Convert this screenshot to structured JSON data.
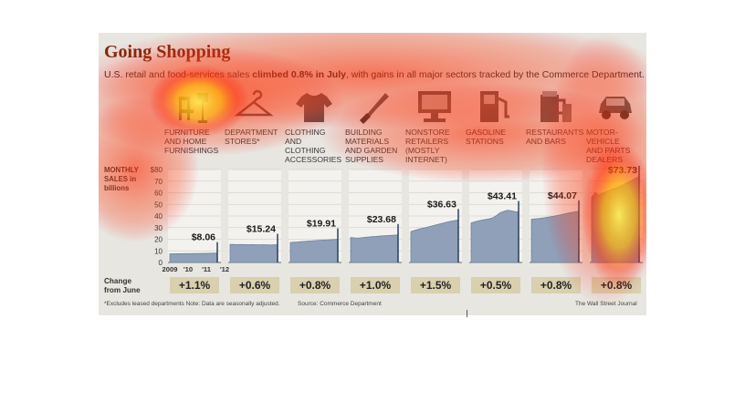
{
  "headline": "Going Shopping",
  "subtitle": {
    "pre": "U.S. retail and food-services sales ",
    "bold": "climbed 0.8% in July",
    "post": ", with gains in all major sectors tracked by the Commerce Department."
  },
  "y_axis_label": "MONTHLY\nSALES in\nbillions",
  "change_label": "Change\nfrom June",
  "footer": {
    "note": "*Excludes leased departments  Note: Data are seasonally adjusted.",
    "source": "Source: Commerce Department",
    "credit": "The Wall Street Journal"
  },
  "heatmap_overlay": "attention heatmap (yellow/red) over the graphic",
  "chart_data": {
    "type": "area",
    "title": "Going Shopping",
    "ylabel": "MONTHLY SALES in billions",
    "ylim": [
      0,
      80
    ],
    "yticks": [
      "$80",
      "70",
      "60",
      "50",
      "40",
      "30",
      "20",
      "10",
      "0"
    ],
    "x_ticks": [
      "2009",
      "'10",
      "'11",
      "'12"
    ],
    "grid": true,
    "series": [
      {
        "name": "FURNITURE AND HOME FURNISHINGS",
        "icon": "chair-lamp-icon",
        "final_value": 8.06,
        "final_label": "$8.06",
        "change": "+1.1%",
        "values": [
          7.4,
          7.4,
          7.5,
          7.5,
          7.6,
          7.6,
          7.6,
          7.7,
          7.7,
          7.8,
          7.8,
          7.9,
          8.0,
          8.06
        ]
      },
      {
        "name": "DEPARTMENT STORES*",
        "icon": "hanger-icon",
        "final_value": 15.24,
        "final_label": "$15.24",
        "change": "+0.6%",
        "values": [
          15.6,
          15.5,
          15.4,
          15.5,
          15.4,
          15.3,
          15.4,
          15.3,
          15.2,
          15.3,
          15.2,
          15.1,
          15.2,
          15.24
        ]
      },
      {
        "name": "CLOTHING AND CLOTHING ACCESSORIES",
        "icon": "tshirt-icon",
        "final_value": 19.91,
        "final_label": "$19.91",
        "change": "+0.8%",
        "values": [
          17.2,
          17.4,
          17.6,
          17.9,
          18.1,
          18.4,
          18.6,
          18.9,
          19.1,
          19.3,
          19.4,
          19.6,
          19.8,
          19.91
        ]
      },
      {
        "name": "BUILDING MATERIALS AND GARDEN SUPPLIES",
        "icon": "trowel-icon",
        "final_value": 23.68,
        "final_label": "$23.68",
        "change": "+1.0%",
        "values": [
          21.5,
          21.2,
          21.0,
          21.3,
          21.6,
          21.9,
          22.2,
          22.4,
          22.7,
          22.9,
          23.1,
          23.3,
          23.5,
          23.68
        ]
      },
      {
        "name": "NONSTORE RETAILERS (MOSTLY INTERNET)",
        "icon": "computer-icon",
        "final_value": 36.63,
        "final_label": "$36.63",
        "change": "+1.5%",
        "values": [
          26.5,
          27.5,
          28.5,
          29.3,
          30.0,
          30.8,
          31.6,
          32.4,
          33.2,
          34.0,
          34.8,
          35.5,
          36.1,
          36.63
        ]
      },
      {
        "name": "GASOLINE STATIONS",
        "icon": "gas-pump-icon",
        "final_value": 43.41,
        "final_label": "$43.41",
        "change": "+0.5%",
        "values": [
          34.0,
          35.0,
          35.8,
          36.5,
          37.0,
          37.5,
          38.5,
          40.5,
          43.0,
          44.0,
          45.0,
          44.5,
          43.8,
          43.41
        ]
      },
      {
        "name": "RESTAURANTS AND BARS",
        "icon": "beer-mug-icon",
        "final_value": 44.07,
        "final_label": "$44.07",
        "change": "+0.8%",
        "values": [
          37.2,
          37.5,
          37.8,
          38.2,
          38.7,
          39.2,
          39.8,
          40.4,
          41.0,
          41.7,
          42.4,
          43.0,
          43.6,
          44.07
        ]
      },
      {
        "name": "MOTOR-VEHICLE AND PARTS DEALERS",
        "icon": "car-icon",
        "final_value": 73.73,
        "final_label": "$73.73",
        "change": "+0.8%",
        "values": [
          56.0,
          60.0,
          58.0,
          59.5,
          61.0,
          62.5,
          63.5,
          64.5,
          66.0,
          67.5,
          69.0,
          70.5,
          72.5,
          73.73
        ]
      }
    ]
  }
}
